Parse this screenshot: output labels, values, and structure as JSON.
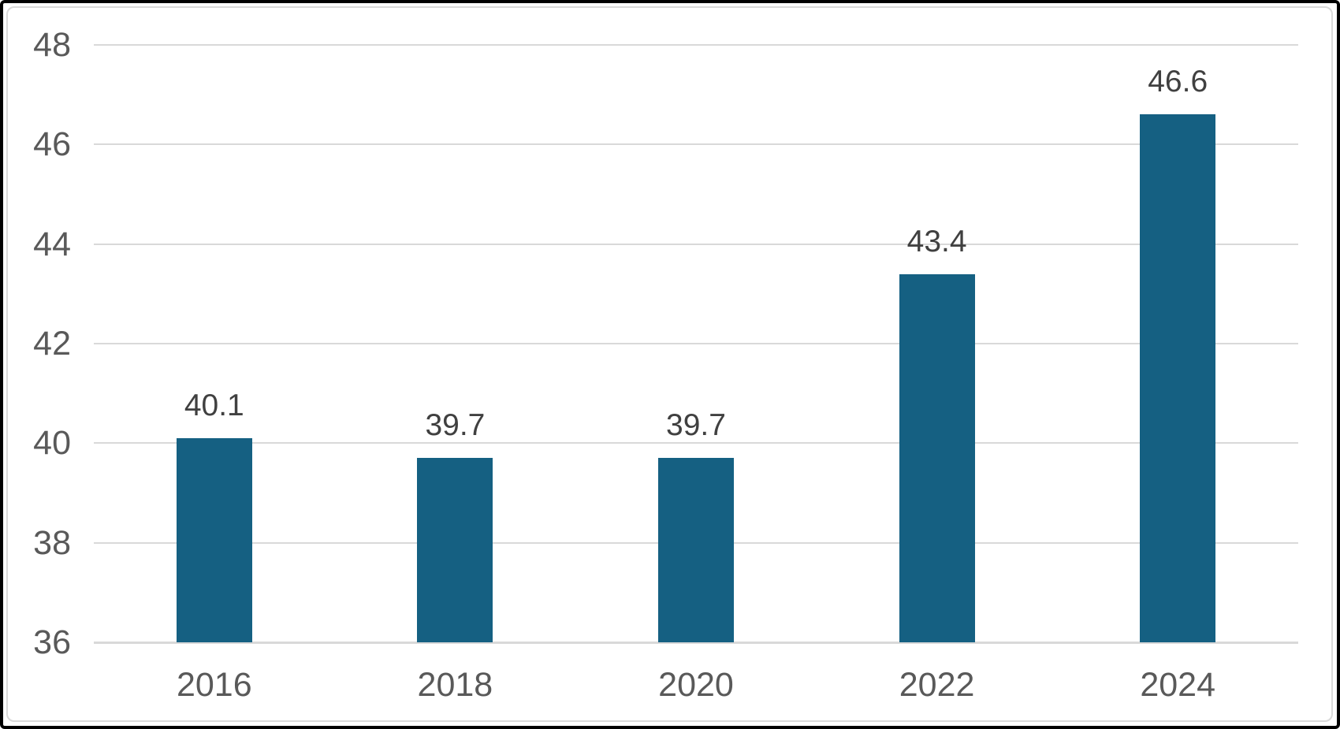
{
  "chart_data": {
    "type": "bar",
    "title": "",
    "xlabel": "",
    "ylabel": "",
    "categories": [
      "2016",
      "2018",
      "2020",
      "2022",
      "2024"
    ],
    "values": [
      40.1,
      39.7,
      39.7,
      43.4,
      46.6
    ],
    "data_labels": [
      "40.1",
      "39.7",
      "39.7",
      "43.4",
      "46.6"
    ],
    "ylim": [
      36,
      48
    ],
    "ytick_interval": 2,
    "yticks": [
      "36",
      "38",
      "40",
      "42",
      "44",
      "46",
      "48"
    ],
    "grid": true,
    "legend": false,
    "colors": {
      "bar": "#156082",
      "gridline": "#D9D9D9",
      "axis_label": "#595959",
      "data_label": "#404040",
      "frame_border": "#D9D9D9",
      "outer_border": "#000000",
      "background": "#FFFFFF"
    }
  }
}
